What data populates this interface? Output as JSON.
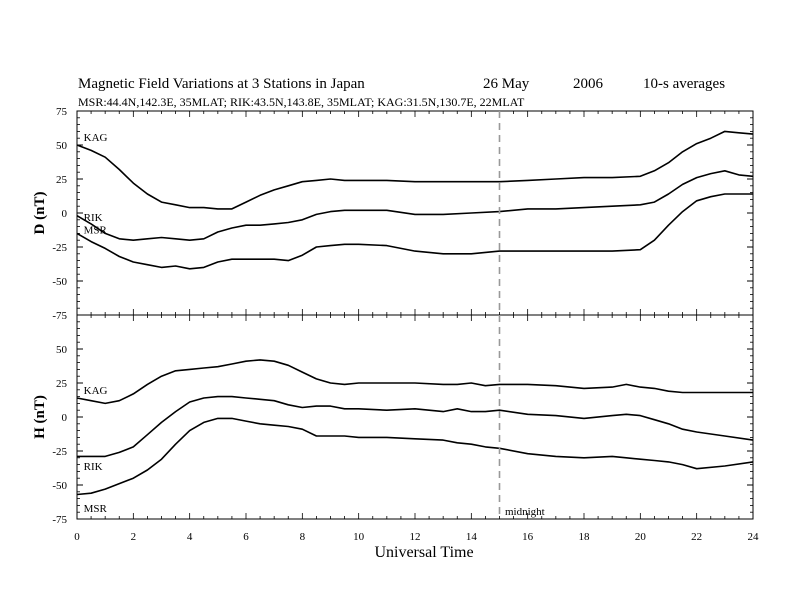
{
  "chart_data": {
    "type": "line",
    "title_parts": {
      "main": "Magnetic Field Variations at 3 Stations in Japan",
      "date": "26 May",
      "year": "2006",
      "averaging": "10-s averages"
    },
    "subtitle": "MSR:44.4N,142.3E, 35MLAT;  RIK:43.5N,143.8E, 35MLAT;  KAG:31.5N,130.7E, 22MLAT",
    "xlabel": "Universal Time",
    "xlim": [
      0,
      24
    ],
    "xticks": [
      "0",
      "2",
      "4",
      "6",
      "8",
      "10",
      "12",
      "14",
      "16",
      "18",
      "20",
      "22",
      "24"
    ],
    "midnight": {
      "x": 15,
      "label": "midnight"
    },
    "panels": [
      {
        "ylabel": "D (nT)",
        "ylim": [
          -75,
          75
        ],
        "yticks": [
          "75",
          "50",
          "25",
          "0",
          "-25",
          "-50",
          "-75"
        ],
        "series": [
          {
            "name": "KAG",
            "x": [
              0,
              0.5,
              1,
              1.5,
              2,
              2.5,
              3,
              3.5,
              4,
              4.5,
              5,
              5.5,
              6,
              6.5,
              7,
              7.5,
              8,
              8.5,
              9,
              9.5,
              10,
              11,
              12,
              13,
              14,
              15,
              16,
              17,
              18,
              19,
              20,
              20.5,
              21,
              21.5,
              22,
              22.5,
              23,
              23.5,
              24
            ],
            "y": [
              50,
              46,
              41,
              32,
              22,
              14,
              8,
              6,
              4,
              4,
              3,
              3,
              8,
              13,
              17,
              20,
              23,
              24,
              25,
              24,
              24,
              24,
              23,
              23,
              23,
              23,
              24,
              25,
              26,
              26,
              27,
              31,
              37,
              45,
              51,
              55,
              60,
              59,
              58
            ]
          },
          {
            "name": "RIK",
            "x": [
              0,
              0.5,
              1,
              1.5,
              2,
              2.5,
              3,
              3.5,
              4,
              4.5,
              5,
              5.5,
              6,
              6.5,
              7,
              7.5,
              8,
              8.5,
              9,
              9.5,
              10,
              11,
              12,
              13,
              14,
              15,
              16,
              17,
              18,
              19,
              20,
              20.5,
              21,
              21.5,
              22,
              22.5,
              23,
              23.5,
              24
            ],
            "y": [
              -2,
              -8,
              -15,
              -19,
              -20,
              -19,
              -18,
              -19,
              -20,
              -19,
              -14,
              -11,
              -9,
              -9,
              -8,
              -7,
              -5,
              -1,
              1,
              2,
              2,
              2,
              -1,
              -1,
              0,
              1,
              3,
              3,
              4,
              5,
              6,
              8,
              14,
              21,
              26,
              29,
              31,
              28,
              27
            ]
          },
          {
            "name": "MSR",
            "x": [
              0,
              0.5,
              1,
              1.5,
              2,
              2.5,
              3,
              3.5,
              4,
              4.5,
              5,
              5.5,
              6,
              6.5,
              7,
              7.5,
              8,
              8.5,
              9,
              9.5,
              10,
              11,
              12,
              13,
              14,
              15,
              16,
              17,
              18,
              19,
              20,
              20.5,
              21,
              21.5,
              22,
              22.5,
              23,
              23.5,
              24
            ],
            "y": [
              -15,
              -21,
              -26,
              -32,
              -36,
              -38,
              -40,
              -39,
              -41,
              -40,
              -36,
              -34,
              -34,
              -34,
              -34,
              -35,
              -31,
              -25,
              -24,
              -23,
              -23,
              -24,
              -28,
              -30,
              -30,
              -28,
              -28,
              -28,
              -28,
              -28,
              -27,
              -20,
              -9,
              1,
              9,
              12,
              14,
              14,
              14
            ]
          }
        ],
        "labels": [
          {
            "series": "KAG",
            "text": "KAG",
            "x": 0.2,
            "y": 53
          },
          {
            "series": "RIK",
            "text": "RIK",
            "x": 0.2,
            "y": -6
          },
          {
            "series": "MSR",
            "text": "MSR",
            "x": 0.2,
            "y": -15
          }
        ]
      },
      {
        "ylabel": "H (nT)",
        "ylim": [
          -75,
          75
        ],
        "yticks": [
          "",
          "50",
          "25",
          "0",
          "-25",
          "-50",
          "-75"
        ],
        "series": [
          {
            "name": "KAG",
            "x": [
              0,
              0.5,
              1,
              1.5,
              2,
              2.5,
              3,
              3.5,
              4,
              4.5,
              5,
              5.5,
              6,
              6.5,
              7,
              7.5,
              8,
              8.5,
              9,
              9.5,
              10,
              11,
              12,
              13,
              13.5,
              14,
              14.5,
              15,
              16,
              17,
              18,
              19,
              19.5,
              20,
              20.5,
              21,
              21.5,
              22,
              23,
              24
            ],
            "y": [
              14,
              12,
              10,
              12,
              17,
              24,
              30,
              34,
              35,
              36,
              37,
              39,
              41,
              42,
              41,
              38,
              33,
              28,
              25,
              24,
              25,
              25,
              25,
              24,
              24,
              25,
              23,
              24,
              24,
              23,
              21,
              22,
              24,
              22,
              21,
              19,
              18,
              18,
              18,
              18
            ]
          },
          {
            "name": "RIK",
            "x": [
              0,
              0.5,
              1,
              1.5,
              2,
              2.5,
              3,
              3.5,
              4,
              4.5,
              5,
              5.5,
              6,
              6.5,
              7,
              7.5,
              8,
              8.5,
              9,
              9.5,
              10,
              11,
              12,
              13,
              13.5,
              14,
              14.5,
              15,
              16,
              17,
              18,
              19,
              19.5,
              20,
              20.5,
              21,
              21.5,
              22,
              23,
              24
            ],
            "y": [
              -29,
              -29,
              -29,
              -26,
              -22,
              -13,
              -4,
              4,
              11,
              14,
              15,
              15,
              14,
              13,
              12,
              9,
              7,
              8,
              8,
              6,
              6,
              5,
              6,
              4,
              6,
              4,
              4,
              5,
              2,
              1,
              -1,
              1,
              2,
              1,
              -2,
              -5,
              -9,
              -11,
              -14,
              -17
            ]
          },
          {
            "name": "MSR",
            "x": [
              0,
              0.5,
              1,
              1.5,
              2,
              2.5,
              3,
              3.5,
              4,
              4.5,
              5,
              5.5,
              6,
              6.5,
              7,
              7.5,
              8,
              8.5,
              9,
              9.5,
              10,
              11,
              12,
              13,
              13.5,
              14,
              14.5,
              15,
              16,
              17,
              18,
              19,
              19.5,
              20,
              20.5,
              21,
              21.5,
              22,
              23,
              24
            ],
            "y": [
              -57,
              -56,
              -53,
              -49,
              -45,
              -39,
              -31,
              -20,
              -10,
              -4,
              -1,
              -1,
              -3,
              -5,
              -6,
              -7,
              -9,
              -14,
              -14,
              -14,
              -15,
              -15,
              -16,
              -17,
              -19,
              -20,
              -22,
              -23,
              -27,
              -29,
              -30,
              -29,
              -30,
              -31,
              -32,
              -33,
              -35,
              -38,
              -36,
              -33
            ]
          }
        ],
        "labels": [
          {
            "series": "KAG",
            "text": "KAG",
            "x": 0.2,
            "y": 17
          },
          {
            "series": "RIK",
            "text": "RIK",
            "x": 0.2,
            "y": -39
          },
          {
            "series": "MSR",
            "text": "MSR",
            "x": 0.2,
            "y": -70
          }
        ]
      }
    ],
    "colors": {
      "lines": "#000000",
      "midnight": "#999999"
    },
    "grid": false
  }
}
